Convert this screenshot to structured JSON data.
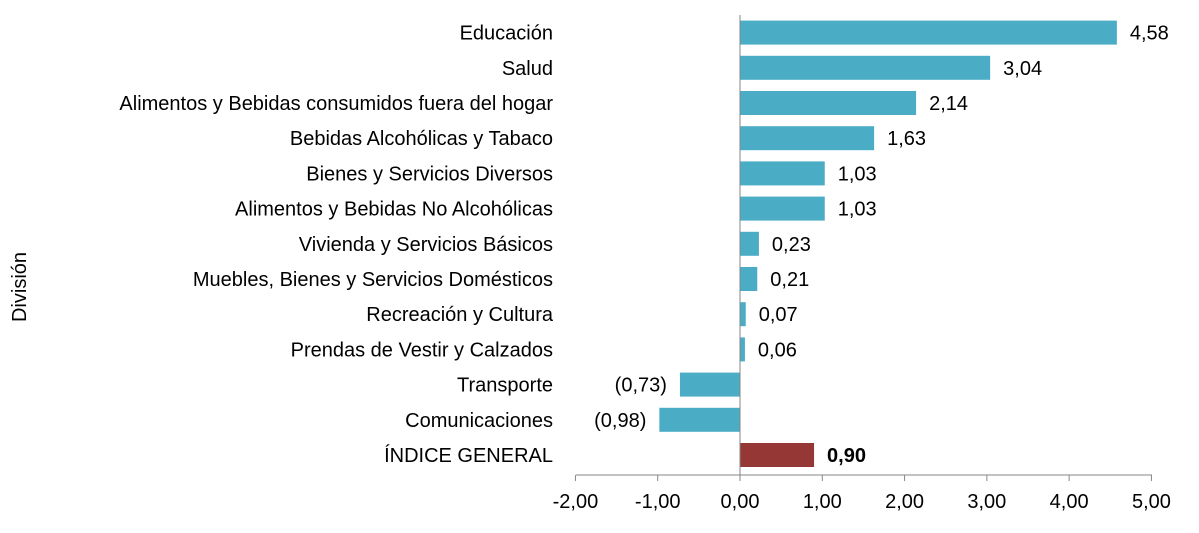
{
  "chart_data": {
    "type": "bar",
    "orientation": "horizontal",
    "ylabel": "División",
    "categories": [
      "Educación",
      "Salud",
      "Alimentos y Bebidas consumidos fuera del hogar",
      "Bebidas Alcohólicas y Tabaco",
      "Bienes y Servicios Diversos",
      "Alimentos y Bebidas No Alcohólicas",
      "Vivienda y Servicios Básicos",
      "Muebles, Bienes y Servicios Domésticos",
      "Recreación y Cultura",
      "Prendas de Vestir y Calzados",
      "Transporte",
      "Comunicaciones",
      "ÍNDICE GENERAL"
    ],
    "values": [
      4.58,
      3.04,
      2.14,
      1.63,
      1.03,
      1.03,
      0.23,
      0.21,
      0.07,
      0.06,
      -0.73,
      -0.98,
      0.9
    ],
    "value_labels": [
      "4,58",
      "3,04",
      "2,14",
      "1,63",
      "1,03",
      "1,03",
      "0,23",
      "0,21",
      "0,07",
      "0,06",
      "(0,73)",
      "(0,98)",
      "0,90"
    ],
    "highlight_index": 12,
    "xlim": [
      -2,
      5
    ],
    "xticks": [
      -2,
      -1,
      0,
      1,
      2,
      3,
      4,
      5
    ],
    "xtick_labels": [
      "-2,00",
      "-1,00",
      "0,00",
      "1,00",
      "2,00",
      "3,00",
      "4,00",
      "5,00"
    ],
    "grid": false,
    "colors": {
      "bar": "#4BACC6",
      "highlight": "#953735",
      "axis": "#868686"
    }
  }
}
